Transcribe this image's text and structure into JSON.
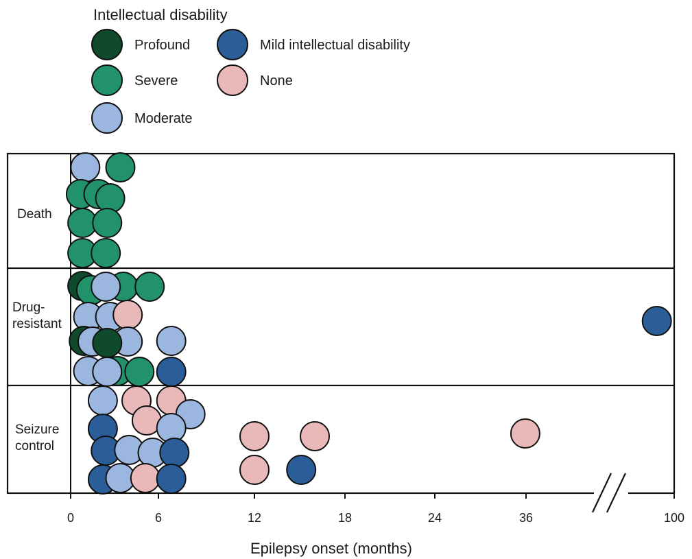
{
  "chart_data": {
    "type": "scatter",
    "title": "",
    "legend": {
      "title": "Intellectual disability",
      "placement": "top-left",
      "entries": [
        {
          "key": "profound",
          "label": "Profound",
          "color": "#0f4a2c"
        },
        {
          "key": "severe",
          "label": "Severe",
          "color": "#21926a"
        },
        {
          "key": "moderate",
          "label": "Moderate",
          "color": "#9bb7df"
        },
        {
          "key": "mild",
          "label": "Mild intellectual disability",
          "color": "#2b5e98"
        },
        {
          "key": "none",
          "label": "None",
          "color": "#e9b9b9"
        }
      ]
    },
    "xlabel": "Epilepsy onset (months)",
    "x_ticks": [
      "0",
      "6",
      "12",
      "18",
      "24",
      "36",
      "100"
    ],
    "x_axis_note": "axis break between 36 and 100",
    "categories": [
      {
        "key": "death",
        "label": "Death",
        "points": [
          {
            "x": 1.0,
            "level": "moderate"
          },
          {
            "x": 3.4,
            "level": "severe"
          },
          {
            "x": 0.7,
            "level": "severe"
          },
          {
            "x": 1.9,
            "level": "severe"
          },
          {
            "x": 2.7,
            "level": "severe"
          },
          {
            "x": 0.8,
            "level": "severe"
          },
          {
            "x": 2.5,
            "level": "severe"
          },
          {
            "x": 0.8,
            "level": "severe"
          },
          {
            "x": 2.4,
            "level": "severe"
          }
        ]
      },
      {
        "key": "drug_resistant",
        "label": "Drug-\nresistant",
        "points": [
          {
            "x": 0.8,
            "level": "profound"
          },
          {
            "x": 1.4,
            "level": "severe"
          },
          {
            "x": 3.6,
            "level": "severe"
          },
          {
            "x": 5.4,
            "level": "severe"
          },
          {
            "x": 2.4,
            "level": "moderate"
          },
          {
            "x": 1.2,
            "level": "moderate"
          },
          {
            "x": 2.7,
            "level": "moderate"
          },
          {
            "x": 3.9,
            "level": "none"
          },
          {
            "x": 0.9,
            "level": "profound"
          },
          {
            "x": 1.5,
            "level": "moderate"
          },
          {
            "x": 3.9,
            "level": "moderate"
          },
          {
            "x": 2.5,
            "level": "profound"
          },
          {
            "x": 6.8,
            "level": "moderate"
          },
          {
            "x": 92.5,
            "level": "mild"
          },
          {
            "x": 1.2,
            "level": "moderate"
          },
          {
            "x": 3.2,
            "level": "severe"
          },
          {
            "x": 2.5,
            "level": "moderate"
          },
          {
            "x": 4.7,
            "level": "severe"
          },
          {
            "x": 6.8,
            "level": "mild"
          }
        ]
      },
      {
        "key": "seizure_control",
        "label": "Seizure\ncontrol",
        "points": [
          {
            "x": 2.2,
            "level": "moderate"
          },
          {
            "x": 4.5,
            "level": "none"
          },
          {
            "x": 6.8,
            "level": "none"
          },
          {
            "x": 8.0,
            "level": "moderate"
          },
          {
            "x": 5.2,
            "level": "none"
          },
          {
            "x": 6.8,
            "level": "moderate"
          },
          {
            "x": 2.2,
            "level": "mild"
          },
          {
            "x": 12.0,
            "level": "none"
          },
          {
            "x": 16.0,
            "level": "none"
          },
          {
            "x": 35.9,
            "level": "none"
          },
          {
            "x": 2.4,
            "level": "mild"
          },
          {
            "x": 4.0,
            "level": "moderate"
          },
          {
            "x": 5.6,
            "level": "moderate"
          },
          {
            "x": 7.0,
            "level": "mild"
          },
          {
            "x": 2.2,
            "level": "mild"
          },
          {
            "x": 3.4,
            "level": "moderate"
          },
          {
            "x": 5.1,
            "level": "none"
          },
          {
            "x": 6.8,
            "level": "mild"
          },
          {
            "x": 12.0,
            "level": "none"
          },
          {
            "x": 15.1,
            "level": "mild"
          }
        ]
      }
    ]
  }
}
